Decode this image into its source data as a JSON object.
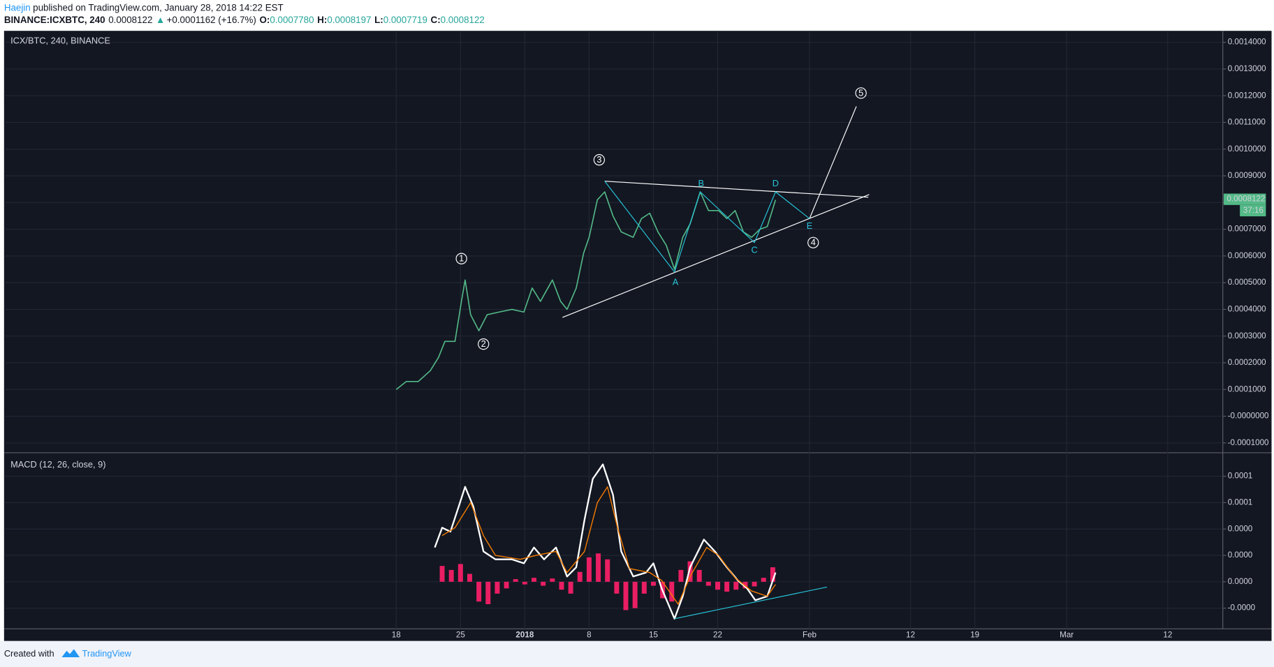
{
  "header": {
    "author": "Haejin",
    "published": "published on TradingView.com, January 28, 2018 14:22 EST",
    "symbol": "BINANCE:ICXBTC, 240",
    "last": "0.0008122",
    "arrow": "▲",
    "change": "+0.0001162 (+16.7%)",
    "o_label": "O:",
    "o_value": "0.0007780",
    "h_label": "H:",
    "h_value": "0.0008197",
    "l_label": "L:",
    "l_value": "0.0007719",
    "c_label": "C:",
    "c_value": "0.0008122"
  },
  "chart_data": [
    {
      "type": "line",
      "title": "ICX/BTC, 240, BINANCE",
      "xlim": [
        -42.7,
        90
      ],
      "xticks": [
        {
          "value": 0,
          "label": "18"
        },
        {
          "value": 7,
          "label": "25"
        },
        {
          "value": 14,
          "label": "2018"
        },
        {
          "value": 21,
          "label": "8"
        },
        {
          "value": 28,
          "label": "15"
        },
        {
          "value": 35,
          "label": "22"
        },
        {
          "value": 45,
          "label": "Feb"
        },
        {
          "value": 56,
          "label": "12"
        },
        {
          "value": 63,
          "label": "19"
        },
        {
          "value": 73,
          "label": "Mar"
        },
        {
          "value": 84,
          "label": "12"
        }
      ],
      "ylim": [
        -0.000137,
        0.001443
      ],
      "yticks": [
        {
          "value": 0.0014,
          "label": "0.0014000"
        },
        {
          "value": 0.0013,
          "label": "0.0013000"
        },
        {
          "value": 0.0012,
          "label": "0.0012000"
        },
        {
          "value": 0.0011,
          "label": "0.0011000"
        },
        {
          "value": 0.001,
          "label": "0.0010000"
        },
        {
          "value": 0.0009,
          "label": "0.0009000"
        },
        {
          "value": 0.0008,
          "label": "0.0008000"
        },
        {
          "value": 0.0007,
          "label": "0.0007000"
        },
        {
          "value": 0.0006,
          "label": "0.0006000"
        },
        {
          "value": 0.0005,
          "label": "0.0005000"
        },
        {
          "value": 0.0004,
          "label": "0.0004000"
        },
        {
          "value": 0.0003,
          "label": "0.0003000"
        },
        {
          "value": 0.0002,
          "label": "0.0002000"
        },
        {
          "value": 0.0001,
          "label": "0.0001000"
        },
        {
          "value": 0,
          "label": "-0.0000000"
        },
        {
          "value": -0.0001,
          "label": "-0.0001000"
        }
      ],
      "grid": true,
      "series": [
        {
          "color": "#53b987",
          "x": [
            0,
            1.1,
            2.4,
            3.7,
            4.6,
            5.3,
            6.4,
            7.1,
            7.5,
            8.1,
            9,
            9.9,
            11.2,
            12.6,
            13.9,
            14.8,
            15.7,
            17,
            17.9,
            18.6,
            19.6,
            20.4,
            21,
            21.9,
            22.7,
            23.6,
            24.5,
            25.8,
            26.7,
            27.6,
            28.5,
            29.4,
            30.3,
            31.2,
            32,
            33.1,
            34,
            35.1,
            36,
            36.9,
            37.8,
            38.7,
            39.6,
            40.4,
            41.3
          ],
          "values": [
            0.0001,
            0.00013,
            0.00013,
            0.00017,
            0.00022,
            0.00028,
            0.00028,
            0.00043,
            0.00051,
            0.00038,
            0.00032,
            0.00038,
            0.00039,
            0.0004,
            0.00039,
            0.00048,
            0.00043,
            0.00051,
            0.00043,
            0.0004,
            0.00048,
            0.00061,
            0.00067,
            0.00081,
            0.00084,
            0.00075,
            0.00069,
            0.00067,
            0.00074,
            0.00076,
            0.00069,
            0.00064,
            0.00055,
            0.00067,
            0.00072,
            0.00084,
            0.00077,
            0.00077,
            0.00074,
            0.00077,
            0.00069,
            0.00067,
            0.0007,
            0.00071,
            0.00081
          ]
        }
      ],
      "last_price": 0.0008122,
      "last_price_color": "#53b987",
      "countdown": "37:16",
      "trendlines": [
        {
          "color": "#ffffff",
          "x": [
            22.7,
            51.4
          ],
          "y": [
            0.00088,
            0.00082
          ]
        },
        {
          "color": "#ffffff",
          "x": [
            18.1,
            51.5
          ],
          "y": [
            0.00037,
            0.00083
          ]
        },
        {
          "color": "#ffffff",
          "x": [
            45,
            50.1
          ],
          "y": [
            0.00074,
            0.00116
          ]
        },
        {
          "color": "#26c6da",
          "x": [
            22.7,
            30.3,
            33.1,
            39,
            41.3,
            45
          ],
          "y": [
            0.00088,
            0.00054,
            0.00084,
            0.00065,
            0.00084,
            0.00074
          ]
        }
      ],
      "waves": [
        {
          "label": "1",
          "x": 7.1,
          "y": 0.00059
        },
        {
          "label": "2",
          "x": 9.5,
          "y": 0.00027
        },
        {
          "label": "3",
          "x": 22.1,
          "y": 0.00096
        },
        {
          "label": "4",
          "x": 45.4,
          "y": 0.00065
        },
        {
          "label": "5",
          "x": 50.6,
          "y": 0.00121
        }
      ],
      "points": [
        {
          "label": "A",
          "x": 30.4,
          "y": 0.0005
        },
        {
          "label": "B",
          "x": 33.2,
          "y": 0.00087
        },
        {
          "label": "C",
          "x": 39,
          "y": 0.00062
        },
        {
          "label": "D",
          "x": 41.3,
          "y": 0.00087
        },
        {
          "label": "E",
          "x": 45,
          "y": 0.00071
        }
      ]
    },
    {
      "type": "macd",
      "title": "MACD (12, 26, close, 9)",
      "xlim": [
        -42.7,
        90
      ],
      "ylim": [
        -3.57e-05,
        9.78e-05
      ],
      "yticks": [
        {
          "value": 8e-05,
          "label": "0.0001"
        },
        {
          "value": 6e-05,
          "label": "0.0001"
        },
        {
          "value": 4e-05,
          "label": "0.0000"
        },
        {
          "value": 2e-05,
          "label": "0.0000"
        },
        {
          "value": 0,
          "label": "0.0000"
        },
        {
          "value": -2e-05,
          "label": "-0.0000"
        }
      ],
      "grid": true,
      "histogram": {
        "color": "#e91e63",
        "x": [
          5,
          6,
          7,
          8,
          9,
          10,
          11,
          12,
          13,
          14,
          15,
          16,
          17,
          18,
          19,
          20,
          21,
          22,
          23,
          24,
          25,
          26,
          27,
          28,
          29,
          30,
          31,
          32,
          33,
          34,
          35,
          36,
          37,
          38,
          39,
          40,
          41
        ],
        "values": [
          1.2e-05,
          9e-06,
          1.35e-05,
          6e-06,
          -1.5e-05,
          -1.7e-05,
          -9e-06,
          -5e-06,
          2e-06,
          -2e-06,
          3e-06,
          -3e-06,
          2.5e-06,
          -6e-06,
          -9e-06,
          7.5e-06,
          1.85e-05,
          2.15e-05,
          1.7e-05,
          -9e-06,
          -2.15e-05,
          -2e-05,
          -9e-06,
          -3e-06,
          -1.25e-05,
          -1.5e-05,
          9e-06,
          1.55e-05,
          9e-06,
          -3e-06,
          -6e-06,
          -7.5e-06,
          -6e-06,
          -5e-06,
          -3.5e-06,
          3e-06,
          1.1e-05
        ]
      },
      "series": [
        {
          "color": "#ffffff",
          "x": [
            4.2,
            5,
            5.9,
            6.8,
            7.5,
            8.4,
            9.5,
            10.8,
            12.6,
            13.9,
            15,
            16.1,
            17.4,
            18.6,
            19.6,
            20.5,
            21.4,
            22.5,
            23.6,
            24.5,
            25.8,
            27.2,
            28,
            28.9,
            30.3,
            31.2,
            32,
            33.5,
            34.7,
            36,
            37.2,
            38.2,
            39.1,
            40.4,
            41.3
          ],
          "values": [
            2.6e-05,
            4.1e-05,
            3.8e-05,
            5.7e-05,
            7.2e-05,
            5.7e-05,
            2.3e-05,
            1.7e-05,
            1.7e-05,
            1.4e-05,
            2.6e-05,
            1.7e-05,
            2.6e-05,
            4e-06,
            1.1e-05,
            4.7e-05,
            7.8e-05,
            8.9e-05,
            6.6e-05,
            2.3e-05,
            4e-06,
            7e-06,
            1.4e-05,
            -5e-06,
            -2.8e-05,
            -1.1e-05,
            1.1e-05,
            3.2e-05,
            2.3e-05,
            1.1e-05,
            1e-06,
            -5e-06,
            -1.4e-05,
            -1.1e-05,
            7e-06
          ]
        },
        {
          "color": "#f57c00",
          "x": [
            5,
            6.4,
            8.1,
            9.5,
            10.8,
            13.5,
            15.2,
            17.4,
            18.6,
            20.5,
            21.9,
            23,
            24.1,
            25.4,
            27.6,
            28.9,
            30.7,
            32,
            33.8,
            35.1,
            36.9,
            38.7,
            40.4,
            41.3
          ],
          "values": [
            3.5e-05,
            4.1e-05,
            6e-05,
            3.5e-05,
            2e-05,
            1.7e-05,
            2e-05,
            2.3e-05,
            7e-06,
            2.3e-05,
            6e-05,
            7.2e-05,
            4.1e-05,
            1e-05,
            7e-06,
            1e-06,
            -1.7e-05,
            4e-06,
            2.6e-05,
            2e-05,
            3e-06,
            -7e-06,
            -1.1e-05,
            -2e-06
          ]
        }
      ],
      "trendlines": [
        {
          "color": "#26c6da",
          "x": [
            30.3,
            46.9
          ],
          "y": [
            -2.8e-05,
            -4e-06
          ]
        }
      ]
    }
  ],
  "footer": {
    "created": "Created with",
    "brand": "TradingView"
  }
}
